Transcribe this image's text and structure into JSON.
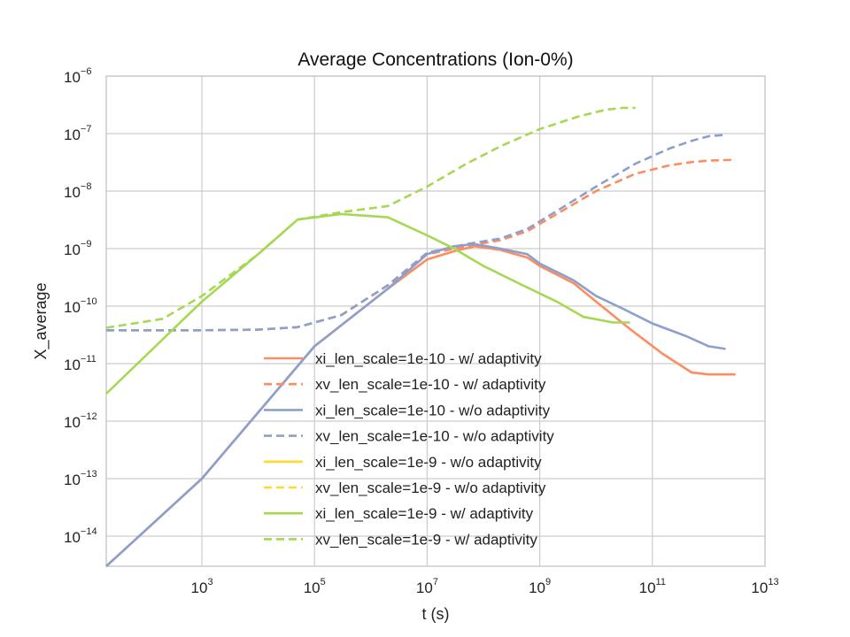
{
  "chart_data": {
    "type": "line",
    "title": "Average Concentrations (Ion-0%)",
    "xlabel": "t (s)",
    "ylabel": "X_average",
    "xscale": "log",
    "yscale": "log",
    "xlim": [
      20,
      10000000000000.0
    ],
    "ylim": [
      3e-15,
      1e-06
    ],
    "xticks": [
      {
        "value": 1000.0,
        "base": "10",
        "exp": "3"
      },
      {
        "value": 100000.0,
        "base": "10",
        "exp": "5"
      },
      {
        "value": 10000000.0,
        "base": "10",
        "exp": "7"
      },
      {
        "value": 1000000000.0,
        "base": "10",
        "exp": "9"
      },
      {
        "value": 100000000000.0,
        "base": "10",
        "exp": "11"
      },
      {
        "value": 10000000000000.0,
        "base": "10",
        "exp": "13"
      }
    ],
    "yticks": [
      {
        "value": 1e-14,
        "base": "10",
        "exp": "−14"
      },
      {
        "value": 1e-13,
        "base": "10",
        "exp": "−13"
      },
      {
        "value": 1e-12,
        "base": "10",
        "exp": "−12"
      },
      {
        "value": 1e-11,
        "base": "10",
        "exp": "−11"
      },
      {
        "value": 1e-10,
        "base": "10",
        "exp": "−10"
      },
      {
        "value": 1e-09,
        "base": "10",
        "exp": "−9"
      },
      {
        "value": 1e-08,
        "base": "10",
        "exp": "−8"
      },
      {
        "value": 1e-07,
        "base": "10",
        "exp": "−7"
      },
      {
        "value": 1e-06,
        "base": "10",
        "exp": "−6"
      }
    ],
    "grid": true,
    "legend_position": "center-bottom",
    "series": [
      {
        "name": "xi_len_scale=1e-10 - w/ adaptivity",
        "color": "#fc8d62",
        "dash": "solid",
        "x": [
          20,
          1000.0,
          100000.0,
          2000000.0,
          10000000.0,
          30000000.0,
          70000000.0,
          200000000.0,
          600000000.0,
          1000000000.0,
          4000000000.0,
          10000000000.0,
          40000000000.0,
          150000000000.0,
          500000000000.0,
          1000000000000.0,
          3000000000000.0
        ],
        "y": [
          3e-15,
          1e-13,
          2e-11,
          2e-10,
          6.5e-10,
          9e-10,
          1.1e-09,
          9.5e-10,
          7e-10,
          5e-10,
          2.5e-10,
          1.2e-10,
          4e-11,
          1.5e-11,
          7e-12,
          6.5e-12,
          6.5e-12
        ]
      },
      {
        "name": "xv_len_scale=1e-10 - w/ adaptivity",
        "color": "#fc8d62",
        "dash": "dashed",
        "x": [
          20,
          1000.0,
          10000.0,
          50000.0,
          300000.0,
          2000000.0,
          10000000.0,
          50000000.0,
          200000000.0,
          600000000.0,
          2000000000.0,
          10000000000.0,
          50000000000.0,
          200000000000.0,
          500000000000.0,
          1000000000000.0,
          3000000000000.0
        ],
        "y": [
          3.8e-11,
          3.8e-11,
          3.9e-11,
          4.3e-11,
          7e-11,
          2.3e-10,
          8e-10,
          1.1e-09,
          1.4e-09,
          2e-09,
          4e-09,
          1e-08,
          2e-08,
          2.8e-08,
          3.2e-08,
          3.4e-08,
          3.5e-08
        ]
      },
      {
        "name": "xi_len_scale=1e-10 - w/o adaptivity",
        "color": "#8da0cb",
        "dash": "solid",
        "x": [
          20,
          1000.0,
          100000.0,
          2000000.0,
          10000000.0,
          30000000.0,
          70000000.0,
          200000000.0,
          600000000.0,
          1000000000.0,
          4000000000.0,
          10000000000.0,
          30000000000.0,
          100000000000.0,
          400000000000.0,
          1000000000000.0,
          2000000000000.0
        ],
        "y": [
          3e-15,
          1e-13,
          2e-11,
          2e-10,
          8e-10,
          1.1e-09,
          1.2e-09,
          1e-09,
          8e-10,
          5.5e-10,
          2.8e-10,
          1.5e-10,
          9e-11,
          5e-11,
          3e-11,
          2e-11,
          1.8e-11
        ]
      },
      {
        "name": "xv_len_scale=1e-10 - w/o adaptivity",
        "color": "#8da0cb",
        "dash": "dashed",
        "x": [
          20,
          1000.0,
          10000.0,
          50000.0,
          300000.0,
          2000000.0,
          10000000.0,
          50000000.0,
          200000000.0,
          600000000.0,
          2000000000.0,
          10000000000.0,
          50000000000.0,
          200000000000.0,
          500000000000.0,
          1000000000000.0,
          2000000000000.0
        ],
        "y": [
          3.8e-11,
          3.8e-11,
          3.9e-11,
          4.3e-11,
          7e-11,
          2.3e-10,
          8.5e-10,
          1.2e-09,
          1.5e-09,
          2.2e-09,
          4.5e-09,
          1.2e-08,
          3e-08,
          5.5e-08,
          7.5e-08,
          9e-08,
          9.5e-08
        ]
      },
      {
        "name": "xi_len_scale=1e-9 - w/o adaptivity",
        "color": "#ffd92f",
        "dash": "solid",
        "x": [],
        "y": []
      },
      {
        "name": "xv_len_scale=1e-9 - w/o adaptivity",
        "color": "#ffd92f",
        "dash": "dashed",
        "x": [],
        "y": []
      },
      {
        "name": "xi_len_scale=1e-9 - w/ adaptivity",
        "color": "#a6d854",
        "dash": "solid",
        "x": [
          20,
          1000.0,
          10000.0,
          50000.0,
          300000.0,
          2000000.0,
          10000000.0,
          30000000.0,
          100000000.0,
          500000000.0,
          2000000000.0,
          6000000000.0,
          20000000000.0,
          40000000000.0
        ],
        "y": [
          3e-12,
          1.2e-10,
          8e-10,
          3.2e-09,
          4e-09,
          3.5e-09,
          1.7e-09,
          1e-09,
          5e-10,
          2.3e-10,
          1.2e-10,
          6.5e-11,
          5.2e-11,
          5.2e-11
        ]
      },
      {
        "name": "xv_len_scale=1e-9 - w/ adaptivity",
        "color": "#a6d854",
        "dash": "dashed",
        "x": [
          20,
          200,
          1000.0,
          10000.0,
          50000.0,
          300000.0,
          2000000.0,
          10000000.0,
          50000000.0,
          200000000.0,
          1000000000.0,
          5000000000.0,
          15000000000.0,
          30000000000.0,
          50000000000.0
        ],
        "y": [
          4.2e-11,
          6e-11,
          1.5e-10,
          8e-10,
          3.2e-09,
          4.3e-09,
          5.5e-09,
          1.2e-08,
          3e-08,
          6e-08,
          1.2e-07,
          2e-07,
          2.6e-07,
          2.8e-07,
          2.8e-07
        ]
      }
    ]
  }
}
